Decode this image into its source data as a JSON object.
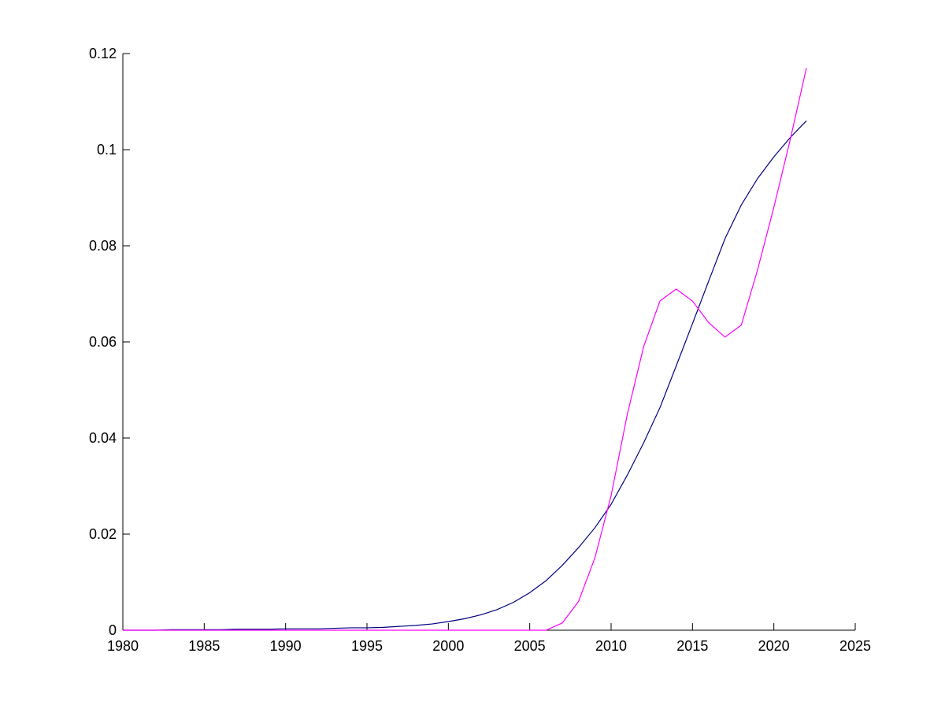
{
  "chart_data": {
    "type": "line",
    "x": [
      1980,
      1981,
      1982,
      1983,
      1984,
      1985,
      1986,
      1987,
      1988,
      1989,
      1990,
      1991,
      1992,
      1993,
      1994,
      1995,
      1996,
      1997,
      1998,
      1999,
      2000,
      2001,
      2002,
      2003,
      2004,
      2005,
      2006,
      2007,
      2008,
      2009,
      2010,
      2011,
      2012,
      2013,
      2014,
      2015,
      2016,
      2017,
      2018,
      2019,
      2020,
      2021,
      2022
    ],
    "series": [
      {
        "color": "#000080",
        "values": [
          0,
          0,
          0,
          0.0001,
          0.0001,
          0.0001,
          0.0001,
          0.0002,
          0.0002,
          0.0002,
          0.0003,
          0.0003,
          0.0003,
          0.0004,
          0.0005,
          0.0005,
          0.0006,
          0.0008,
          0.001,
          0.0013,
          0.0018,
          0.0024,
          0.0032,
          0.0043,
          0.0058,
          0.0078,
          0.0103,
          0.0135,
          0.0172,
          0.0213,
          0.0262,
          0.0323,
          0.039,
          0.0463,
          0.055,
          0.0638,
          0.0727,
          0.0815,
          0.0885,
          0.094,
          0.0985,
          0.1025,
          0.106
        ]
      },
      {
        "color": "#ff00ff",
        "values": [
          0,
          0,
          0,
          0,
          0,
          0,
          0,
          0,
          0,
          0,
          0,
          0,
          0,
          0,
          0,
          0,
          0,
          0,
          0,
          0,
          0,
          0,
          0,
          0,
          0,
          0,
          0,
          0.0015,
          0.006,
          0.015,
          0.028,
          0.045,
          0.059,
          0.0685,
          0.071,
          0.0685,
          0.064,
          0.061,
          0.0635,
          0.075,
          0.088,
          0.102,
          0.117
        ]
      }
    ],
    "xlim": [
      1980,
      2025
    ],
    "xticks": [
      1980,
      1985,
      1990,
      1995,
      2000,
      2005,
      2010,
      2015,
      2020,
      2025
    ],
    "ylim": [
      0,
      0.12
    ],
    "yticks": [
      0,
      0.02,
      0.04,
      0.06,
      0.08,
      0.1,
      0.12
    ]
  }
}
